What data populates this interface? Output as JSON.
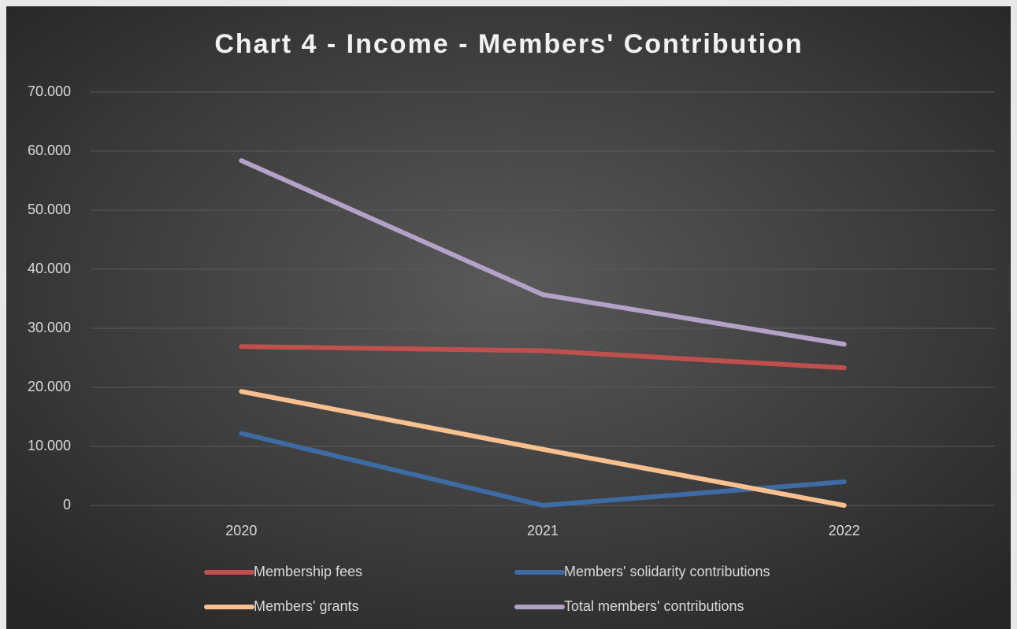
{
  "chart_data": {
    "type": "line",
    "title": "Chart 4 - Income - Members' Contribution",
    "categories": [
      "2020",
      "2021",
      "2022"
    ],
    "series": [
      {
        "name": "Membership fees",
        "color": "#c0504d",
        "values": [
          26900,
          26200,
          23300
        ]
      },
      {
        "name": "Members' solidarity contributions",
        "color": "#3d6ba3",
        "values": [
          12200,
          0,
          4000
        ]
      },
      {
        "name": "Members' grants",
        "color": "#fac090",
        "values": [
          19300,
          9500,
          0
        ]
      },
      {
        "name": "Total members' contributions",
        "color": "#b3a2c7",
        "values": [
          58400,
          35700,
          27300
        ]
      }
    ],
    "ylim": [
      0,
      70000
    ],
    "yticks": [
      0,
      {
        "value": 10000,
        "label": "10.000"
      },
      {
        "value": 20000,
        "label": "20.000"
      },
      {
        "value": 30000,
        "label": "30.000"
      },
      {
        "value": 40000,
        "label": "40.000"
      },
      {
        "value": 50000,
        "label": "50.000"
      },
      {
        "value": 60000,
        "label": "60.000"
      },
      {
        "value": 70000,
        "label": "70.000"
      }
    ],
    "grid": true,
    "legend": "bottom"
  }
}
